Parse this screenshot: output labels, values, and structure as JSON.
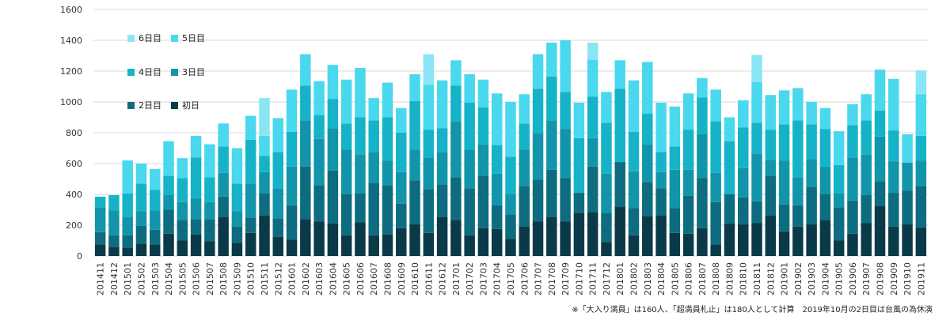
{
  "chart_data": {
    "type": "bar",
    "stacked": true,
    "title": "",
    "xlabel": "",
    "ylabel": "",
    "ylim": [
      0,
      1600
    ],
    "yticks": [
      0,
      200,
      400,
      600,
      800,
      1000,
      1200,
      1400,
      1600
    ],
    "grid": "horizontal",
    "legend_position": "top-left",
    "categories": [
      "201411",
      "201412",
      "201501",
      "201502",
      "201503",
      "201504",
      "201505",
      "201506",
      "201507",
      "201508",
      "201509",
      "201510",
      "201511",
      "201512",
      "201601",
      "201602",
      "201603",
      "201604",
      "201605",
      "201606",
      "201607",
      "201608",
      "201609",
      "201610",
      "201611",
      "201612",
      "201701",
      "201702",
      "201703",
      "201704",
      "201705",
      "201706",
      "201707",
      "201708",
      "201709",
      "201710",
      "201711",
      "201712",
      "201801",
      "201802",
      "201803",
      "201804",
      "201805",
      "201806",
      "201807",
      "201808",
      "201809",
      "201810",
      "201811",
      "201812",
      "201901",
      "201902",
      "201903",
      "201904",
      "201905",
      "201906",
      "201907",
      "201908",
      "201909",
      "201910",
      "201911"
    ],
    "series": [
      {
        "name": "初日",
        "color": "#0a3a48",
        "values": [
          75,
          60,
          55,
          80,
          75,
          145,
          100,
          140,
          95,
          255,
          85,
          150,
          265,
          125,
          105,
          240,
          225,
          210,
          135,
          220,
          135,
          140,
          180,
          205,
          150,
          255,
          235,
          135,
          180,
          175,
          110,
          190,
          225,
          255,
          225,
          280,
          285,
          90,
          320,
          135,
          260,
          265,
          150,
          145,
          180,
          75,
          210,
          205,
          215,
          265,
          160,
          190,
          205,
          235,
          100,
          145,
          215,
          325,
          190,
          205,
          185
        ]
      },
      {
        "name": "2日目",
        "color": "#0e6c80",
        "values": [
          80,
          75,
          80,
          115,
          95,
          155,
          135,
          100,
          145,
          130,
          105,
          100,
          140,
          120,
          225,
          340,
          235,
          345,
          265,
          185,
          340,
          320,
          160,
          285,
          285,
          210,
          275,
          305,
          340,
          155,
          160,
          265,
          270,
          305,
          280,
          130,
          295,
          190,
          290,
          175,
          220,
          175,
          160,
          245,
          325,
          275,
          190,
          175,
          140,
          255,
          175,
          140,
          245,
          165,
          215,
          215,
          180,
          160,
          220,
          220,
          270
        ]
      },
      {
        "name": "3日目",
        "color": "#1295aa",
        "values": [
          160,
          160,
          120,
          95,
          125,
          95,
          115,
          135,
          110,
          155,
          100,
          220,
          140,
          195,
          250,
          300,
          300,
          275,
          290,
          255,
          200,
          160,
          205,
          200,
          205,
          210,
          365,
          250,
          205,
          205,
          130,
          235,
          300,
          320,
          320,
          0,
          185,
          255,
          0,
          240,
          245,
          105,
          250,
          170,
          285,
          190,
          0,
          190,
          310,
          105,
          285,
          180,
          180,
          180,
          90,
          280,
          265,
          290,
          205,
          180,
          165
        ]
      },
      {
        "name": "4日目",
        "color": "#16b3c8",
        "values": [
          70,
          100,
          150,
          180,
          135,
          125,
          155,
          265,
          160,
          170,
          180,
          285,
          105,
          235,
          225,
          225,
          155,
          190,
          170,
          240,
          205,
          280,
          255,
          315,
          180,
          155,
          230,
          305,
          240,
          185,
          245,
          170,
          290,
          285,
          240,
          355,
          270,
          330,
          475,
          255,
          200,
          130,
          150,
          260,
          240,
          335,
          345,
          265,
          200,
          195,
          235,
          370,
          225,
          245,
          185,
          210,
          220,
          170,
          200,
          0,
          160
        ]
      },
      {
        "name": "5日目",
        "color": "#4ad8ee",
        "values": [
          0,
          0,
          215,
          130,
          135,
          225,
          130,
          140,
          215,
          150,
          230,
          155,
          130,
          220,
          275,
          205,
          220,
          220,
          285,
          320,
          145,
          225,
          160,
          175,
          290,
          310,
          165,
          185,
          180,
          335,
          355,
          190,
          225,
          220,
          335,
          230,
          240,
          200,
          185,
          335,
          335,
          320,
          260,
          235,
          125,
          205,
          155,
          175,
          265,
          225,
          220,
          210,
          145,
          135,
          220,
          135,
          170,
          265,
          335,
          185,
          270
        ]
      },
      {
        "name": "6日目",
        "color": "#8ae6f4",
        "values": [
          0,
          0,
          0,
          0,
          0,
          0,
          0,
          0,
          0,
          0,
          0,
          0,
          245,
          0,
          0,
          0,
          0,
          0,
          0,
          0,
          0,
          0,
          0,
          0,
          200,
          0,
          0,
          0,
          0,
          0,
          0,
          0,
          0,
          0,
          0,
          0,
          110,
          0,
          0,
          0,
          0,
          0,
          0,
          0,
          0,
          0,
          0,
          0,
          175,
          0,
          0,
          0,
          0,
          0,
          0,
          0,
          0,
          0,
          0,
          0,
          155
        ]
      }
    ]
  },
  "note": "※「大入り満員」は160人、「超満員札止」は180人として計算　2019年10月の2日目は台風の為休演"
}
